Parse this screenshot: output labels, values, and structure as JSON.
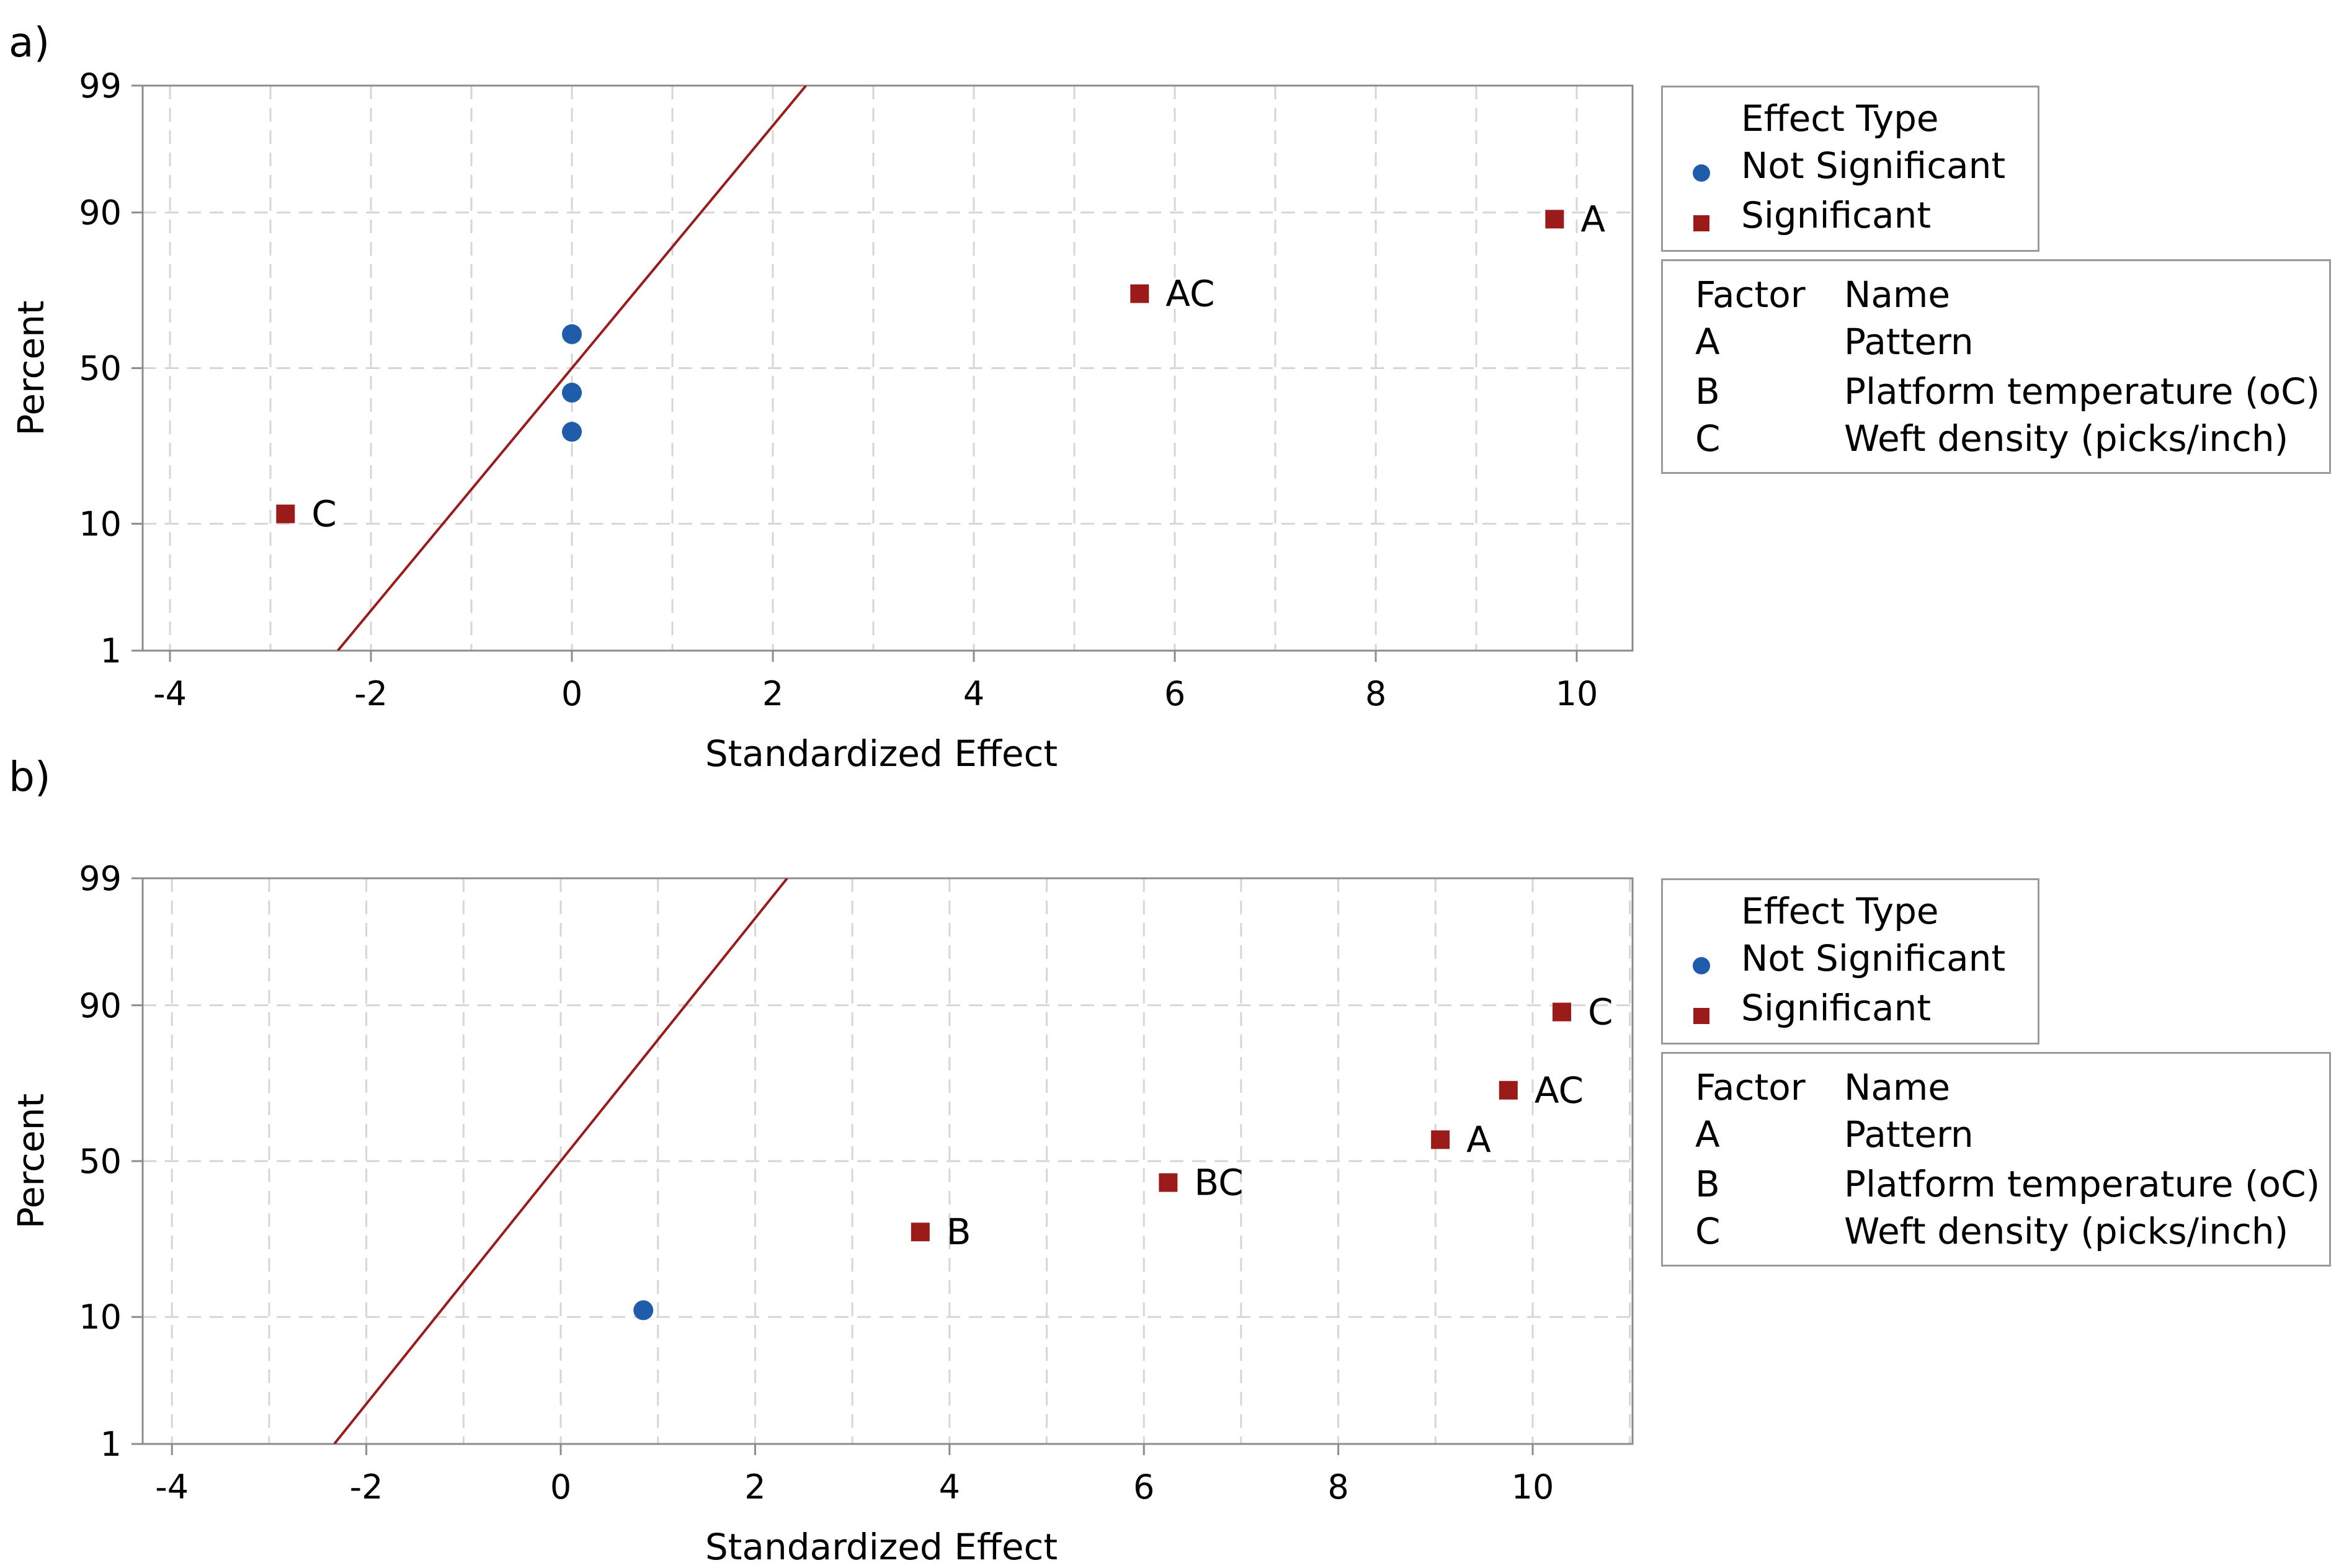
{
  "chart_data": [
    {
      "type": "scatter",
      "panel_label": "a)",
      "title": "",
      "xlabel": "Standardized Effect",
      "ylabel": "Percent",
      "xlim": [
        -4.4,
        11.0
      ],
      "xticks": [
        -4,
        -2,
        0,
        2,
        4,
        6,
        8,
        10
      ],
      "yticks": [
        1,
        10,
        50,
        90,
        99
      ],
      "grid": true,
      "reference_line": {
        "x": [
          -2.33,
          2.33
        ],
        "y": [
          1,
          99
        ]
      },
      "points": [
        {
          "x": -2.85,
          "y": 11.5,
          "label": "C",
          "significant": true
        },
        {
          "x": 0.0,
          "y": 30.0,
          "label": "",
          "significant": false
        },
        {
          "x": 0.0,
          "y": 42.0,
          "label": "",
          "significant": false
        },
        {
          "x": 0.0,
          "y": 61.0,
          "label": "",
          "significant": false
        },
        {
          "x": 5.65,
          "y": 73.0,
          "label": "AC",
          "significant": true
        },
        {
          "x": 9.78,
          "y": 89.0,
          "label": "A",
          "significant": true
        }
      ],
      "legend": {
        "title": "Effect Type",
        "items": [
          {
            "label": "Not Significant",
            "marker": "circle",
            "color": "#1f5ca9"
          },
          {
            "label": "Significant",
            "marker": "square",
            "color": "#9b1b1b"
          }
        ]
      },
      "factor_table": {
        "headers": [
          "Factor",
          "Name"
        ],
        "rows": [
          [
            "A",
            "Pattern"
          ],
          [
            "B",
            "Platform temperature (oC)"
          ],
          [
            "C",
            "Weft density (picks/inch)"
          ]
        ]
      }
    },
    {
      "type": "scatter",
      "panel_label": "b)",
      "title": "",
      "xlabel": "Standardized Effect",
      "ylabel": "Percent",
      "xlim": [
        -4.4,
        11.0
      ],
      "xticks": [
        -4,
        -2,
        0,
        2,
        4,
        6,
        8,
        10
      ],
      "yticks": [
        1,
        10,
        50,
        90,
        99
      ],
      "grid": true,
      "reference_line": {
        "x": [
          -2.33,
          2.33
        ],
        "y": [
          1,
          99
        ]
      },
      "points": [
        {
          "x": 0.85,
          "y": 11.0,
          "label": "",
          "significant": false
        },
        {
          "x": 3.7,
          "y": 28.0,
          "label": "B",
          "significant": true
        },
        {
          "x": 6.25,
          "y": 43.0,
          "label": "BC",
          "significant": true
        },
        {
          "x": 9.05,
          "y": 57.0,
          "label": "A",
          "significant": true
        },
        {
          "x": 9.75,
          "y": 72.0,
          "label": "AC",
          "significant": true
        },
        {
          "x": 10.3,
          "y": 89.0,
          "label": "C",
          "significant": true
        }
      ],
      "legend": {
        "title": "Effect Type",
        "items": [
          {
            "label": "Not Significant",
            "marker": "circle",
            "color": "#1f5ca9"
          },
          {
            "label": "Significant",
            "marker": "square",
            "color": "#9b1b1b"
          }
        ]
      },
      "factor_table": {
        "headers": [
          "Factor",
          "Name"
        ],
        "rows": [
          [
            "A",
            "Pattern"
          ],
          [
            "B",
            "Platform temperature (oC)"
          ],
          [
            "C",
            "Weft density (picks/inch)"
          ]
        ]
      }
    }
  ],
  "colors": {
    "grid": "#d6d6d6",
    "axis": "#8c8c8c",
    "reference_line": "#9b1b1b",
    "not_significant": "#1f5ca9",
    "significant": "#9b1b1b"
  }
}
